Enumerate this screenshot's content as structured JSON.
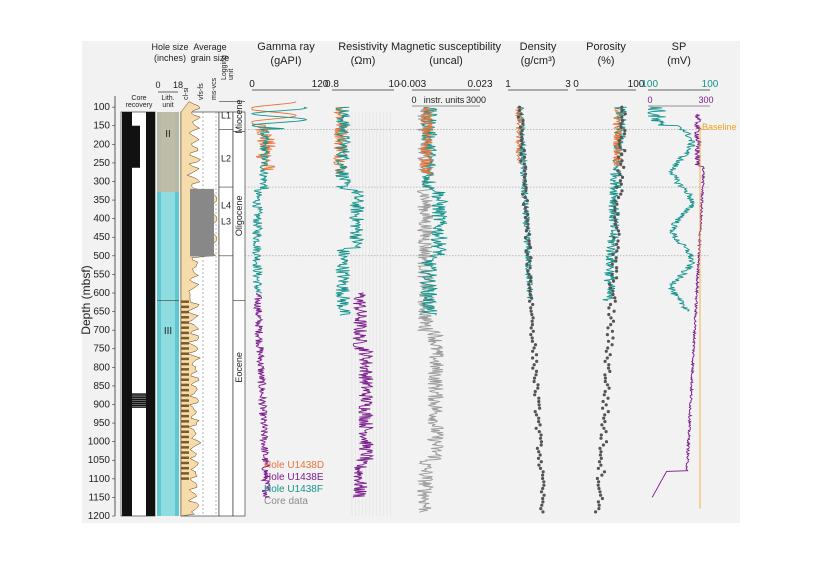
{
  "depth_axis": {
    "label": "Depth (mbsf)",
    "ticks": [
      100,
      150,
      200,
      250,
      300,
      350,
      400,
      450,
      500,
      550,
      600,
      650,
      700,
      750,
      800,
      850,
      900,
      950,
      1000,
      1050,
      1100,
      1150,
      1200
    ],
    "range": [
      70,
      1200
    ]
  },
  "core": {
    "label_1": "Core",
    "label_2": "recovery"
  },
  "hole_size": {
    "title_1": "Hole size",
    "title_2": "(inches)",
    "tick_min": "0",
    "tick_max": "18"
  },
  "grain": {
    "title_1": "Average",
    "title_2": "grain size",
    "labels": [
      "cl-si",
      "vfs-fs",
      "ms-vcs"
    ]
  },
  "lith": {
    "label_1": "Lith.",
    "label_2": "unit",
    "units": [
      {
        "name": "II",
        "depth": 180
      },
      {
        "name": "III",
        "depth": 710
      }
    ]
  },
  "logging": {
    "label_1": "Logging",
    "label_2": "unit",
    "units": [
      {
        "name": "L1",
        "top": 85,
        "bottom": 160
      },
      {
        "name": "L2",
        "top": 160,
        "bottom": 315
      },
      {
        "name": "L3",
        "top": 315,
        "bottom": 500
      },
      {
        "name": "L4",
        "top": 500,
        "bottom": 1200
      }
    ]
  },
  "epochs": [
    {
      "name": "Miocene",
      "top": 85,
      "bottom": 165
    },
    {
      "name": "Oligocene",
      "top": 165,
      "bottom": 620
    },
    {
      "name": "Eocene",
      "top": 620,
      "bottom": 1200
    }
  ],
  "tracks": [
    {
      "key": "gamma",
      "title_1": "Gamma ray",
      "title_2": "(gAPI)",
      "min": "0",
      "max": "120"
    },
    {
      "key": "res",
      "title_1": "Resistivity",
      "title_2": "(Ωm)",
      "min": "0.8",
      "max": "10"
    },
    {
      "key": "mag",
      "title_1": "Magnetic susceptibility",
      "title_2": "(uncal)",
      "min": "-0.003",
      "max": "0.023",
      "min2": "0",
      "unit2": "instr. units",
      "max2": "3000"
    },
    {
      "key": "dens",
      "title_1": "Density",
      "title_2": "(g/cm³)",
      "min": "1",
      "max": "3"
    },
    {
      "key": "por",
      "title_1": "Porosity",
      "title_2": "(%)",
      "min": "0",
      "max": "100"
    },
    {
      "key": "sp",
      "title_1": "SP",
      "title_2": "(mV)",
      "min": "-100",
      "max": "100",
      "min2": "0",
      "max2": "300"
    }
  ],
  "sp_baseline_label": "Baseline",
  "legend": [
    {
      "name": "Hole U1438D",
      "color": "#e8743b"
    },
    {
      "name": "Hole U1438E",
      "color": "#7b1c8c"
    },
    {
      "name": "Hole U1438F",
      "color": "#14948c"
    },
    {
      "name": "Core data",
      "color": "#8c8c8c"
    }
  ],
  "chart_data": {
    "type": "line",
    "x_label": "Depth (mbsf)",
    "depth_range": [
      70,
      1200
    ],
    "series": [
      {
        "name": "Hole U1438D",
        "track": "Gamma ray",
        "depth": [
          85,
          100,
          120,
          140,
          160,
          180,
          200,
          220,
          240,
          260
        ],
        "values": [
          40,
          70,
          95,
          60,
          45,
          25,
          30,
          20,
          25,
          20
        ]
      },
      {
        "name": "Hole U1438F",
        "track": "Gamma ray",
        "depth": [
          100,
          120,
          140,
          160,
          200,
          250,
          300,
          350,
          400,
          450,
          500,
          550,
          600
        ],
        "values": [
          50,
          100,
          80,
          50,
          25,
          20,
          10,
          8,
          8,
          10,
          15,
          10,
          12
        ]
      },
      {
        "name": "Hole U1438E",
        "track": "Gamma ray",
        "depth": [
          600,
          700,
          800,
          900,
          1000,
          1100,
          1150
        ],
        "values": [
          10,
          8,
          12,
          15,
          20,
          25,
          30
        ]
      },
      {
        "name": "Hole U1438E",
        "track": "Resistivity",
        "depth": [
          600,
          700,
          800,
          900,
          1000,
          1100,
          1150
        ],
        "values": [
          2.0,
          3.5,
          4.0,
          5.5,
          5.0,
          4.5,
          4.0
        ]
      },
      {
        "name": "Hole U1438F",
        "track": "Resistivity",
        "depth": [
          100,
          200,
          300,
          350,
          400,
          500,
          600,
          650
        ],
        "values": [
          1.3,
          1.5,
          1.5,
          2.5,
          2.2,
          1.5,
          2.0,
          2.5
        ]
      },
      {
        "name": "Core data",
        "track": "Density",
        "depth": [
          100,
          300,
          500,
          700,
          900,
          1100,
          1200
        ],
        "values": [
          1.4,
          1.7,
          1.9,
          2.0,
          2.0,
          2.1,
          2.1
        ]
      },
      {
        "name": "Core data",
        "track": "Porosity",
        "depth": [
          100,
          300,
          500,
          700,
          900,
          1100,
          1200
        ],
        "values": [
          80,
          70,
          60,
          50,
          50,
          45,
          45
        ]
      }
    ]
  }
}
